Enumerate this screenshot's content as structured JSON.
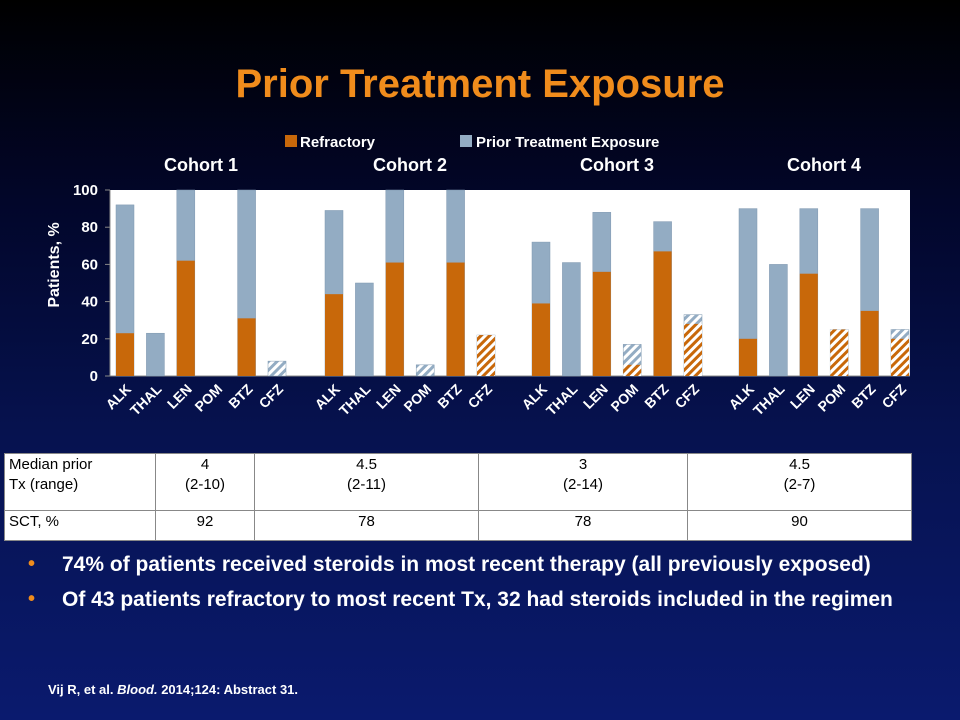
{
  "title": "Prior Treatment Exposure",
  "legend": [
    {
      "label": "Refractory",
      "color": "#c8680a"
    },
    {
      "label": "Prior Treatment Exposure",
      "color": "#93acc3"
    }
  ],
  "chart_data": {
    "type": "bar",
    "stacked": true,
    "ylabel": "Patients, %",
    "ylim": [
      0,
      100
    ],
    "yticks": [
      "0",
      "20",
      "40",
      "60",
      "80",
      "100"
    ],
    "grid": false,
    "legend_position": "top",
    "cohorts": [
      {
        "name": "Cohort 1",
        "categories": [
          "ALK",
          "THAL",
          "LEN",
          "POM",
          "BTZ",
          "CFZ"
        ],
        "refractory": [
          23,
          0,
          62,
          0,
          31,
          0
        ],
        "prior_exposure": [
          92,
          23,
          100,
          0,
          100,
          8
        ],
        "refractory_hatched": [
          false,
          false,
          false,
          false,
          false,
          true
        ]
      },
      {
        "name": "Cohort 2",
        "categories": [
          "ALK",
          "THAL",
          "LEN",
          "POM",
          "BTZ",
          "CFZ"
        ],
        "refractory": [
          44,
          0,
          61,
          0,
          61,
          22
        ],
        "prior_exposure": [
          89,
          50,
          100,
          6,
          100,
          22
        ],
        "refractory_hatched": [
          false,
          false,
          false,
          true,
          false,
          true
        ]
      },
      {
        "name": "Cohort 3",
        "categories": [
          "ALK",
          "THAL",
          "LEN",
          "POM",
          "BTZ",
          "CFZ"
        ],
        "refractory": [
          39,
          0,
          56,
          6,
          67,
          28
        ],
        "prior_exposure": [
          72,
          61,
          88,
          17,
          83,
          33
        ],
        "refractory_hatched": [
          false,
          false,
          false,
          true,
          false,
          true
        ]
      },
      {
        "name": "Cohort 4",
        "categories": [
          "ALK",
          "THAL",
          "LEN",
          "POM",
          "BTZ",
          "CFZ"
        ],
        "refractory": [
          20,
          0,
          55,
          25,
          35,
          20
        ],
        "prior_exposure": [
          90,
          60,
          90,
          25,
          90,
          25
        ],
        "refractory_hatched": [
          false,
          false,
          false,
          true,
          false,
          true
        ]
      }
    ]
  },
  "table": {
    "row1_header_line1": "Median prior",
    "row1_header_line2": "Tx (range)",
    "row1": [
      {
        "median": "4",
        "range": "(2-10)"
      },
      {
        "median": "4.5",
        "range": "(2-11)"
      },
      {
        "median": "3",
        "range": "(2-14)"
      },
      {
        "median": "4.5",
        "range": "(2-7)"
      }
    ],
    "row2_header": "SCT, %",
    "row2": [
      "92",
      "78",
      "78",
      "90"
    ]
  },
  "bullets": [
    "74% of patients received steroids in most recent therapy (all previously exposed)",
    "Of 43 patients refractory to most recent Tx, 32 had steroids included in the regimen"
  ],
  "citation": {
    "authors": "Vij R, et al.",
    "journal": "Blood.",
    "rest": "2014;124: Abstract 31."
  }
}
